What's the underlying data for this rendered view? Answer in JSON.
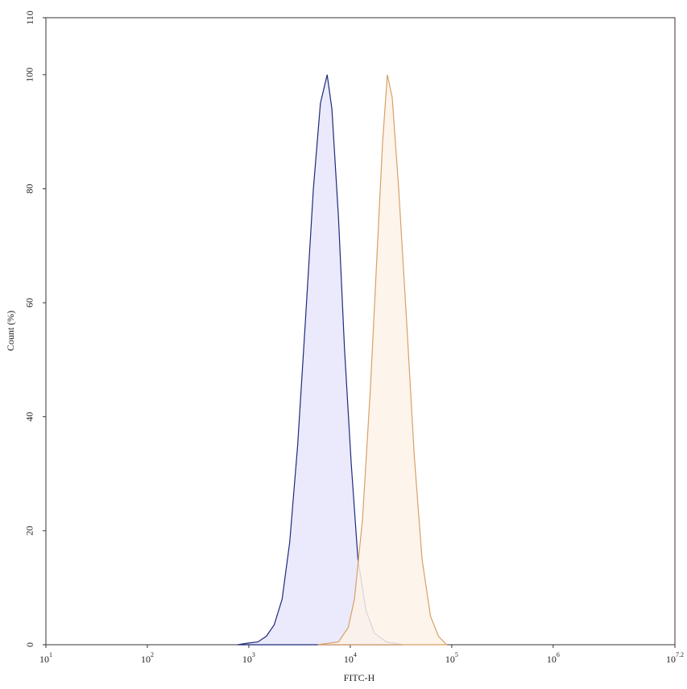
{
  "chart_data": {
    "type": "histogram-overlay",
    "x_label": "FITC-H",
    "y_label": "Count  (%)",
    "x_log_scale": true,
    "xlim": [
      10,
      15848932
    ],
    "ylim": [
      0,
      110
    ],
    "xticks": [
      {
        "value": 10,
        "label": "10",
        "exponent": "1"
      },
      {
        "value": 100,
        "label": "10",
        "exponent": "2"
      },
      {
        "value": 1000,
        "label": "10",
        "exponent": "3"
      },
      {
        "value": 10000,
        "label": "10",
        "exponent": "4"
      },
      {
        "value": 100000,
        "label": "10",
        "exponent": "5"
      },
      {
        "value": 1000000,
        "label": "10",
        "exponent": "6"
      },
      {
        "value": 15848932,
        "label": "10",
        "exponent": "7.2"
      }
    ],
    "yticks": [
      0,
      20,
      40,
      60,
      80,
      100,
      110
    ],
    "series": [
      {
        "color": "#1f2a7a",
        "fill": "#e6e6fb",
        "x": [
          776,
          1000,
          1230,
          1490,
          1780,
          2130,
          2530,
          3030,
          3620,
          4330,
          5080,
          5920,
          6590,
          7650,
          8770,
          10200,
          11900,
          14300,
          17300,
          22700,
          32900
        ],
        "values": [
          0,
          0.3,
          0.5,
          1.5,
          3.5,
          8,
          18,
          35,
          57,
          80,
          95,
          100,
          94,
          75,
          52,
          32,
          15,
          6,
          2,
          0.5,
          0
        ]
      },
      {
        "color": "#d9a066",
        "fill": "#fdf2e8",
        "x": [
          4780,
          7650,
          9540,
          11000,
          13200,
          15800,
          18300,
          20800,
          23200,
          25900,
          30000,
          36400,
          42800,
          51000,
          61800,
          74000,
          89000
        ],
        "values": [
          0,
          0.5,
          3,
          8,
          22,
          45,
          68,
          88,
          100,
          96,
          80,
          55,
          33,
          15,
          5,
          1.5,
          0
        ]
      }
    ]
  }
}
